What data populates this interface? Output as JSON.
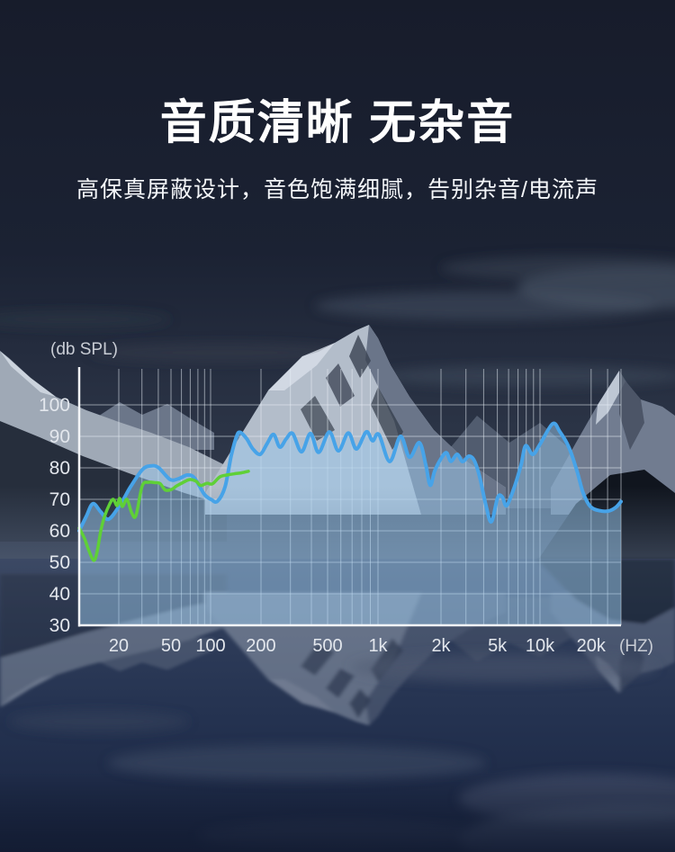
{
  "page": {
    "background": "#161b2b"
  },
  "header": {
    "title": "音质清晰 无杂音",
    "subtitle": "高保真屏蔽设计，音色饱满细腻，告别杂音/电流声"
  },
  "chart_data": {
    "type": "area",
    "title": "",
    "ylabel": "(db SPL)",
    "x_unit_label": "(HZ)",
    "x_scale": "log",
    "grid": true,
    "ylim": [
      30,
      111
    ],
    "xlim_hz": [
      10,
      30000
    ],
    "y_ticks": [
      100,
      90,
      80,
      70,
      60,
      50,
      40,
      30
    ],
    "x_ticks": [
      {
        "label": "20",
        "hz": 20
      },
      {
        "label": "50",
        "hz": 50
      },
      {
        "label": "100",
        "hz": 100
      },
      {
        "label": "200",
        "hz": 200
      },
      {
        "label": "500",
        "hz": 500
      },
      {
        "label": "1k",
        "hz": 1000
      },
      {
        "label": "2k",
        "hz": 2000
      },
      {
        "label": "5k",
        "hz": 5000
      },
      {
        "label": "10k",
        "hz": 10000
      },
      {
        "label": "20k",
        "hz": 20000
      }
    ],
    "x_gridlines_hz": [
      20,
      30,
      40,
      50,
      60,
      70,
      80,
      90,
      100,
      200,
      300,
      400,
      500,
      600,
      700,
      800,
      900,
      1000,
      2000,
      3000,
      4000,
      5000,
      6000,
      7000,
      8000,
      9000,
      10000,
      20000,
      25000,
      30000
    ],
    "colors": {
      "axis": "#f3f5f8",
      "grid": "rgba(231,238,246,0.55)",
      "tick_text": "#e3e7ed",
      "label_text": "#c9cdd5",
      "area_stroke": "#47a3e8",
      "area_fill": "rgba(154,200,236,0.5)",
      "line": "#5fd037"
    },
    "series": [
      {
        "name": "speaker-frequency-response",
        "type": "area",
        "points": [
          [
            10,
            60
          ],
          [
            11.3,
            64.5
          ],
          [
            12.7,
            68.6
          ],
          [
            14.6,
            66
          ],
          [
            16.8,
            63.7
          ],
          [
            20.7,
            68.6
          ],
          [
            24.6,
            74
          ],
          [
            30.2,
            79.4
          ],
          [
            34.8,
            80.6
          ],
          [
            40.1,
            80.1
          ],
          [
            49.2,
            76.3
          ],
          [
            57.6,
            76.6
          ],
          [
            66.3,
            77.7
          ],
          [
            75.3,
            76.8
          ],
          [
            89.6,
            71.6
          ],
          [
            101,
            69.9
          ],
          [
            110,
            69.4
          ],
          [
            122,
            74
          ],
          [
            133,
            84
          ],
          [
            143,
            90
          ],
          [
            150,
            91.3
          ],
          [
            164,
            89.3
          ],
          [
            179,
            86
          ],
          [
            198,
            84.3
          ],
          [
            218,
            87.8
          ],
          [
            238,
            90.6
          ],
          [
            259,
            86.6
          ],
          [
            283,
            89.2
          ],
          [
            309,
            90.9
          ],
          [
            349,
            85.1
          ],
          [
            395,
            90.9
          ],
          [
            442,
            84.9
          ],
          [
            512,
            91.4
          ],
          [
            580,
            85.4
          ],
          [
            665,
            91.1
          ],
          [
            743,
            86
          ],
          [
            851,
            91.4
          ],
          [
            928,
            88.6
          ],
          [
            1010,
            90.6
          ],
          [
            1137,
            82
          ],
          [
            1281,
            90
          ],
          [
            1414,
            83.4
          ],
          [
            1577,
            88
          ],
          [
            1691,
            80.9
          ],
          [
            1776,
            74.5
          ],
          [
            1866,
            79
          ],
          [
            2000,
            82.9
          ],
          [
            2184,
            84.8
          ],
          [
            2350,
            82.1
          ],
          [
            2602,
            84.3
          ],
          [
            2838,
            82
          ],
          [
            3149,
            83.7
          ],
          [
            3437,
            82.3
          ],
          [
            3751,
            77.1
          ],
          [
            4156,
            68
          ],
          [
            4538,
            62.9
          ],
          [
            5026,
            70.6
          ],
          [
            5410,
            70.8
          ],
          [
            5820,
            68
          ],
          [
            6637,
            74.3
          ],
          [
            7355,
            81
          ],
          [
            7917,
            87
          ],
          [
            8896,
            84.3
          ],
          [
            10000,
            87.5
          ],
          [
            11866,
            94
          ],
          [
            13079,
            91.5
          ],
          [
            14783,
            86.6
          ],
          [
            16497,
            79.1
          ],
          [
            17966,
            72
          ],
          [
            19815,
            67.7
          ],
          [
            22387,
            66.4
          ],
          [
            25292,
            66.3
          ],
          [
            27889,
            67.4
          ],
          [
            30000,
            69.3
          ]
        ]
      },
      {
        "name": "reference-curve",
        "type": "line",
        "points": [
          [
            10,
            60.9
          ],
          [
            11,
            57.5
          ],
          [
            11.7,
            54.3
          ],
          [
            12.9,
            50.6
          ],
          [
            13.7,
            53.5
          ],
          [
            14.6,
            60
          ],
          [
            15.6,
            64.6
          ],
          [
            17.1,
            68.6
          ],
          [
            18.2,
            70
          ],
          [
            19.4,
            68
          ],
          [
            20.3,
            70.3
          ],
          [
            21.3,
            67.7
          ],
          [
            23.1,
            70
          ],
          [
            25,
            65.9
          ],
          [
            27,
            64.8
          ],
          [
            30.2,
            74.3
          ],
          [
            33.7,
            75.4
          ],
          [
            37.6,
            75.3
          ],
          [
            41.3,
            75
          ],
          [
            45.4,
            72.9
          ],
          [
            50.8,
            73.2
          ],
          [
            54.9,
            74.2
          ],
          [
            61.3,
            75.3
          ],
          [
            69.6,
            76.3
          ],
          [
            77.7,
            75.7
          ],
          [
            84.1,
            74.4
          ],
          [
            93.9,
            75.1
          ],
          [
            102.5,
            74.9
          ],
          [
            113.2,
            77.1
          ],
          [
            124.9,
            77.7
          ],
          [
            138,
            78.1
          ],
          [
            152.3,
            78.4
          ],
          [
            168.2,
            78.9
          ]
        ]
      }
    ]
  }
}
